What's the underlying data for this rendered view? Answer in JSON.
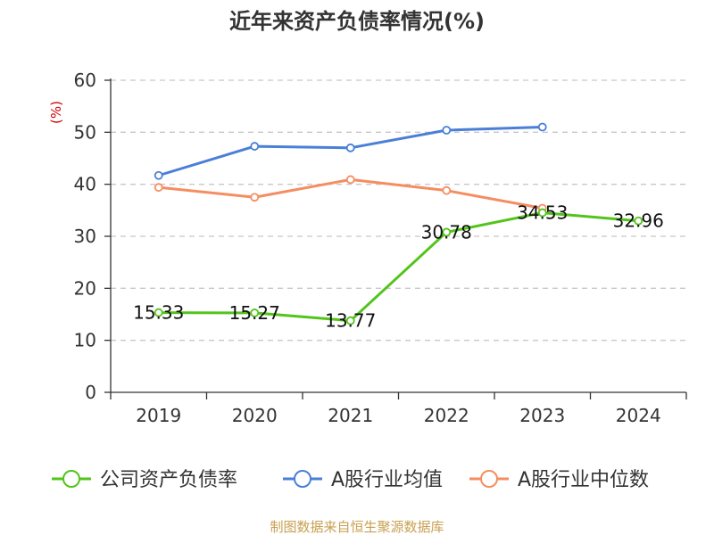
{
  "colors": {
    "company": "#52c41a",
    "industry_avg": "#4a7fd8",
    "industry_median": "#f58d60",
    "unit": "#cc0000",
    "source": "#c8a050",
    "grid": "#c8c8c8",
    "axis": "#333333"
  },
  "source_text": "制图数据来自恒生聚源数据库",
  "chart_data": {
    "type": "line",
    "title": "近年来资产负债率情况(%)",
    "ylabel": "(%)",
    "xlabel": "",
    "categories": [
      "2019",
      "2020",
      "2021",
      "2022",
      "2023",
      "2024"
    ],
    "ylim": [
      0,
      60
    ],
    "yticks": [
      0,
      10,
      20,
      30,
      40,
      50,
      60
    ],
    "grid": true,
    "legend_position": "bottom",
    "series": [
      {
        "name": "公司资产负债率",
        "color_key": "company",
        "values": [
          15.33,
          15.27,
          13.77,
          30.78,
          34.53,
          32.96
        ],
        "labels": [
          "15.33",
          "15.27",
          "13.77",
          "30.78",
          "34.53",
          "32.96"
        ],
        "show_labels": true
      },
      {
        "name": "A股行业均值",
        "color_key": "industry_avg",
        "values": [
          41.7,
          47.3,
          47.0,
          50.4,
          51.0,
          null
        ],
        "show_labels": false
      },
      {
        "name": "A股行业中位数",
        "color_key": "industry_median",
        "values": [
          39.4,
          37.5,
          40.9,
          38.8,
          35.4,
          null
        ],
        "show_labels": false
      }
    ]
  }
}
